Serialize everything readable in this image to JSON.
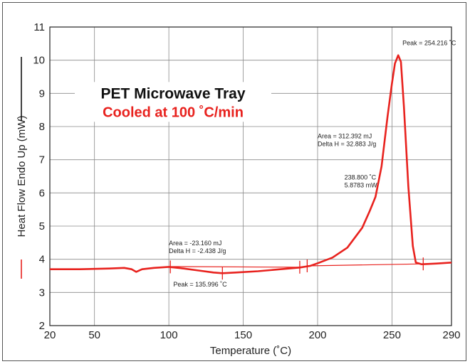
{
  "chart_data": {
    "type": "line",
    "title": "PET Microwave Tray",
    "subtitle": "Cooled at 100 ˚C/min",
    "xlabel": "Temperature (˚C)",
    "ylabel": "Heat Flow Endo Up (mW)",
    "xlim": [
      20,
      290
    ],
    "ylim": [
      2,
      11
    ],
    "xticks": [
      "20",
      "50",
      "100",
      "150",
      "200",
      "250",
      "290"
    ],
    "yticks": [
      "2",
      "3",
      "4",
      "5",
      "6",
      "7",
      "8",
      "9",
      "10",
      "11"
    ],
    "grid": true,
    "series": [
      {
        "color": "#e8221e",
        "x": [
          20,
          40,
          60,
          70,
          75,
          78,
          82,
          90,
          100,
          110,
          120,
          130,
          136,
          145,
          160,
          175,
          188,
          195,
          200,
          210,
          220,
          230,
          235,
          238.9,
          243,
          247,
          250,
          252,
          254.2,
          256,
          258,
          261,
          264,
          266,
          270,
          280,
          290
        ],
        "y": [
          3.7,
          3.7,
          3.72,
          3.74,
          3.7,
          3.62,
          3.7,
          3.74,
          3.77,
          3.72,
          3.66,
          3.6,
          3.58,
          3.6,
          3.64,
          3.7,
          3.75,
          3.8,
          3.88,
          4.05,
          4.35,
          4.95,
          5.45,
          5.88,
          6.8,
          8.3,
          9.3,
          9.9,
          10.15,
          9.95,
          8.6,
          6.2,
          4.4,
          3.9,
          3.85,
          3.87,
          3.9
        ]
      }
    ],
    "baselines": [
      {
        "x": [
          100,
          188
        ],
        "y": [
          3.78,
          3.76
        ]
      },
      {
        "x": [
          193,
          270
        ],
        "y": [
          3.8,
          3.86
        ]
      }
    ],
    "marker_lines": [
      {
        "x": 101,
        "y": 3.77
      },
      {
        "x": 188,
        "y": 3.76
      },
      {
        "x": 193,
        "y": 3.8
      },
      {
        "x": 271,
        "y": 3.86
      },
      {
        "x": 136,
        "y": 3.58
      }
    ],
    "legend_line_color": "#111111",
    "annotations": [
      {
        "lines": [
          "Peak = 254.216 ˚C"
        ],
        "x": 257,
        "y": 10.45
      },
      {
        "lines": [
          "Area = 312.392 mJ",
          "Delta H = 32.883 J/g"
        ],
        "x": 200,
        "y": 7.65
      },
      {
        "lines": [
          "238.800 ˚C",
          "5.8783 mW"
        ],
        "x": 218,
        "y": 6.4
      },
      {
        "lines": [
          "Area = -23.160 mJ",
          "Delta H = -2.438 J/g"
        ],
        "x": 100,
        "y": 4.42
      },
      {
        "lines": [
          "Peak = 135.996 ˚C"
        ],
        "x": 103,
        "y": 3.18
      }
    ]
  }
}
